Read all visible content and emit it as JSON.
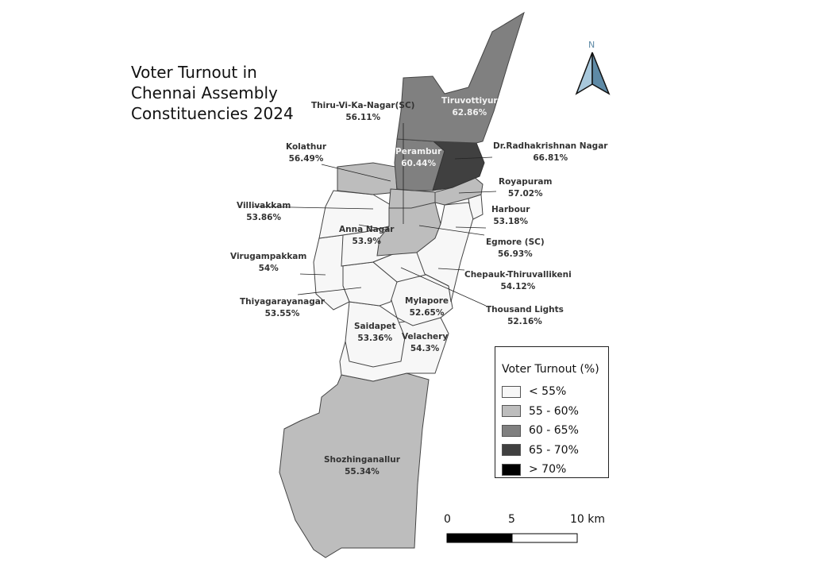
{
  "map": {
    "title": "Voter Turnout in Chennai Assembly Constituencies 2024",
    "north_arrow_label": "N",
    "constituencies": [
      {
        "name": "Thiru-Vi-Ka-Nagar(SC)",
        "turnout": "56.11%",
        "value": 56.11,
        "class": "55 - 60%"
      },
      {
        "name": "Tiruvottiyur",
        "turnout": "62.86%",
        "value": 62.86,
        "class": "60 - 65%"
      },
      {
        "name": "Kolathur",
        "turnout": "56.49%",
        "value": 56.49,
        "class": "55 - 60%"
      },
      {
        "name": "Perambur",
        "turnout": "60.44%",
        "value": 60.44,
        "class": "60 - 65%"
      },
      {
        "name": "Dr.Radhakrishnan Nagar",
        "turnout": "66.81%",
        "value": 66.81,
        "class": "65 - 70%"
      },
      {
        "name": "Royapuram",
        "turnout": "57.02%",
        "value": 57.02,
        "class": "55 - 60%"
      },
      {
        "name": "Villivakkam",
        "turnout": "53.86%",
        "value": 53.86,
        "class": "< 55%"
      },
      {
        "name": "Harbour",
        "turnout": "53.18%",
        "value": 53.18,
        "class": "< 55%"
      },
      {
        "name": "Anna Nagar",
        "turnout": "53.9%",
        "value": 53.9,
        "class": "< 55%"
      },
      {
        "name": "Egmore (SC)",
        "turnout": "56.93%",
        "value": 56.93,
        "class": "55 - 60%"
      },
      {
        "name": "Virugampakkam",
        "turnout": "54%",
        "value": 54,
        "class": "< 55%"
      },
      {
        "name": "Chepauk-Thiruvallikeni",
        "turnout": "54.12%",
        "value": 54.12,
        "class": "< 55%"
      },
      {
        "name": "Thiyagarayanagar",
        "turnout": "53.55%",
        "value": 53.55,
        "class": "< 55%"
      },
      {
        "name": "Mylapore",
        "turnout": "52.65%",
        "value": 52.65,
        "class": "< 55%"
      },
      {
        "name": "Thousand Lights",
        "turnout": "52.16%",
        "value": 52.16,
        "class": "< 55%"
      },
      {
        "name": "Saidapet",
        "turnout": "53.36%",
        "value": 53.36,
        "class": "< 55%"
      },
      {
        "name": "Velachery",
        "turnout": "54.3%",
        "value": 54.3,
        "class": "< 55%"
      },
      {
        "name": "Shozhinganallur",
        "turnout": "55.34%",
        "value": 55.34,
        "class": "55 - 60%"
      }
    ]
  },
  "legend": {
    "title": "Voter Turnout (%)",
    "items": [
      {
        "label": "< 55%",
        "color": "#f7f7f7"
      },
      {
        "label": "55 - 60%",
        "color": "#bdbdbd"
      },
      {
        "label": "60 - 65%",
        "color": "#808080"
      },
      {
        "label": "65 - 70%",
        "color": "#404040"
      },
      {
        "label": "> 70%",
        "color": "#000000"
      }
    ]
  },
  "scale_bar": {
    "ticks": [
      "0",
      "5",
      "10 km"
    ]
  }
}
